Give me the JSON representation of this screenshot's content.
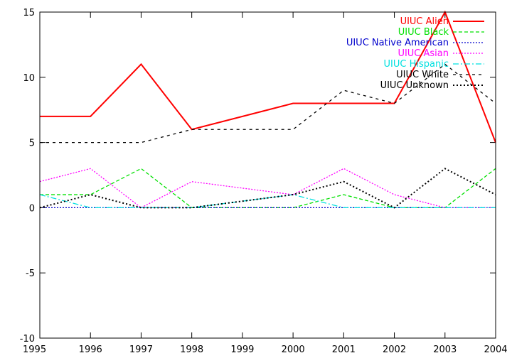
{
  "chart_data": {
    "type": "line",
    "x": [
      1995,
      1996,
      1997,
      1998,
      1999,
      2000,
      2001,
      2002,
      2003,
      2004
    ],
    "xlim": [
      1995,
      2004
    ],
    "ylim": [
      -10,
      15
    ],
    "x_ticks": [
      "1995",
      "1996",
      "1997",
      "1998",
      "1999",
      "2000",
      "2001",
      "2002",
      "2003",
      "2004"
    ],
    "y_ticks": [
      "-10",
      "-5",
      "0",
      "5",
      "10",
      "15"
    ],
    "grid": false,
    "legend_position": "top-right",
    "title": "",
    "xlabel": "",
    "ylabel": "",
    "series": [
      {
        "name": "UIUC Alien",
        "color": "#ff0000",
        "style": "solid",
        "points": [
          [
            1995,
            7
          ],
          [
            1996,
            7
          ],
          [
            1997,
            11
          ],
          [
            1998,
            6
          ],
          [
            2000,
            8
          ],
          [
            2001,
            8
          ],
          [
            2002,
            8
          ],
          [
            2003,
            15
          ],
          [
            2004,
            5
          ]
        ]
      },
      {
        "name": "UIUC Black",
        "color": "#00e000",
        "style": "dashed",
        "points": [
          [
            1995,
            1
          ],
          [
            1996,
            1
          ],
          [
            1997,
            3
          ],
          [
            1998,
            0
          ],
          [
            2000,
            0
          ],
          [
            2001,
            1
          ],
          [
            2002,
            0
          ],
          [
            2003,
            0
          ],
          [
            2004,
            3
          ]
        ]
      },
      {
        "name": "UIUC Native American",
        "color": "#0000cc",
        "style": "dotted",
        "points": [
          [
            1995,
            0
          ],
          [
            1996,
            0
          ],
          [
            1997,
            0
          ],
          [
            1998,
            0
          ],
          [
            2000,
            0
          ],
          [
            2001,
            0
          ],
          [
            2002,
            0
          ],
          [
            2003,
            0
          ],
          [
            2004,
            0
          ]
        ]
      },
      {
        "name": "UIUC Asian",
        "color": "#ff00ff",
        "style": "dotted",
        "points": [
          [
            1995,
            2
          ],
          [
            1996,
            3
          ],
          [
            1997,
            0
          ],
          [
            1998,
            2
          ],
          [
            2000,
            1
          ],
          [
            2001,
            3
          ],
          [
            2002,
            1
          ],
          [
            2003,
            0
          ],
          [
            2004,
            0
          ]
        ]
      },
      {
        "name": "UIUC Hispanic",
        "color": "#00e0e0",
        "style": "dashdot",
        "points": [
          [
            1995,
            1
          ],
          [
            1996,
            0
          ],
          [
            1997,
            0
          ],
          [
            1998,
            0
          ],
          [
            2000,
            1
          ],
          [
            2001,
            0
          ],
          [
            2002,
            0
          ],
          [
            2003,
            0
          ],
          [
            2004,
            0
          ]
        ]
      },
      {
        "name": "UIUC White",
        "color": "#000000",
        "style": "sparse-dashed",
        "points": [
          [
            1995,
            5
          ],
          [
            1996,
            5
          ],
          [
            1997,
            5
          ],
          [
            1998,
            6
          ],
          [
            2000,
            6
          ],
          [
            2001,
            9
          ],
          [
            2002,
            8
          ],
          [
            2003,
            11
          ],
          [
            2004,
            8
          ]
        ]
      },
      {
        "name": "UIUC Unknown",
        "color": "#000000",
        "style": "dotted-dense",
        "points": [
          [
            1995,
            0
          ],
          [
            1996,
            1
          ],
          [
            1997,
            0
          ],
          [
            1998,
            0
          ],
          [
            2000,
            1
          ],
          [
            2001,
            2
          ],
          [
            2002,
            0
          ],
          [
            2003,
            3
          ],
          [
            2004,
            1
          ]
        ]
      }
    ]
  }
}
